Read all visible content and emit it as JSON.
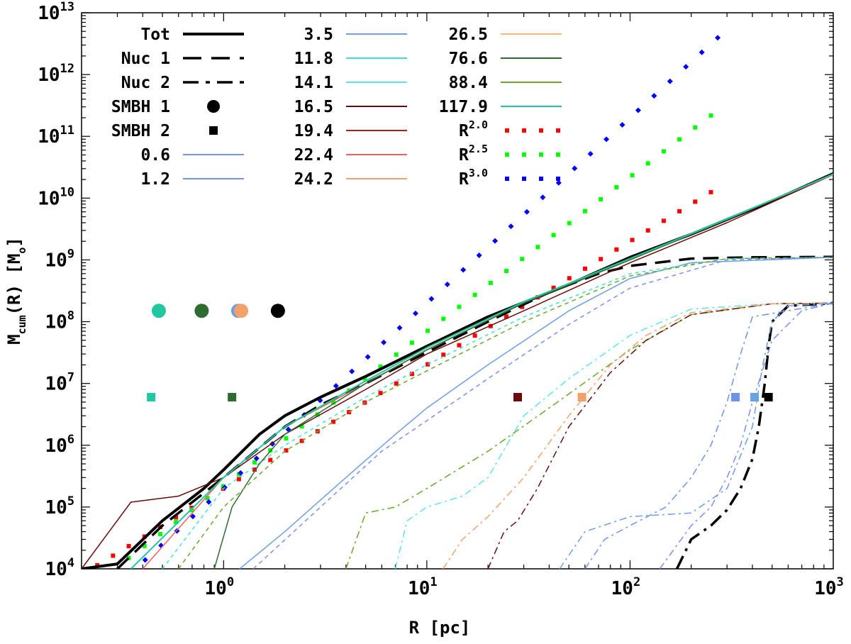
{
  "chart_data": {
    "type": "line",
    "title": "",
    "xlabel": "R [pc]",
    "ylabel": "M_cum(R) [M_o]",
    "ylabel_parts": [
      "M",
      "cum",
      "(R) [M",
      "o",
      "]"
    ],
    "xscale": "log",
    "yscale": "log",
    "xlim": [
      0.2,
      1000
    ],
    "ylim": [
      10000,
      10000000000000
    ],
    "x_ticks": [
      {
        "base": "10",
        "exp": "0",
        "value": 1
      },
      {
        "base": "10",
        "exp": "1",
        "value": 10
      },
      {
        "base": "10",
        "exp": "2",
        "value": 100
      },
      {
        "base": "10",
        "exp": "3",
        "value": 1000
      }
    ],
    "y_ticks": [
      {
        "base": "10",
        "exp": "4",
        "value": 10000.0
      },
      {
        "base": "10",
        "exp": "5",
        "value": 100000.0
      },
      {
        "base": "10",
        "exp": "6",
        "value": 1000000.0
      },
      {
        "base": "10",
        "exp": "7",
        "value": 10000000.0
      },
      {
        "base": "10",
        "exp": "8",
        "value": 100000000.0
      },
      {
        "base": "10",
        "exp": "9",
        "value": 1000000000.0
      },
      {
        "base": "10",
        "exp": "10",
        "value": 10000000000.0
      },
      {
        "base": "10",
        "exp": "11",
        "value": 100000000000.0
      },
      {
        "base": "10",
        "exp": "12",
        "value": 1000000000000.0
      },
      {
        "base": "10",
        "exp": "13",
        "value": 10000000000000.0
      }
    ],
    "legend_position": "top-left",
    "legend": [
      {
        "label": "Tot",
        "style": "solid-thick",
        "color": "#000000"
      },
      {
        "label": "Nuc  1",
        "style": "dashed-long",
        "color": "#000000"
      },
      {
        "label": "Nuc  2",
        "style": "dashdot",
        "color": "#000000"
      },
      {
        "label": "SMBH 1",
        "style": "circle",
        "color": "#000000"
      },
      {
        "label": "SMBH 2",
        "style": "square",
        "color": "#000000"
      },
      {
        "label": "0.6",
        "style": "solid",
        "color": "#7b8ff0"
      },
      {
        "label": "1.2",
        "style": "solid",
        "color": "#6f93e8"
      },
      {
        "label": "3.5",
        "style": "solid",
        "color": "#6d9fe3"
      },
      {
        "label": "11.8",
        "style": "solid",
        "color": "#40e0d0"
      },
      {
        "label": "14.1",
        "style": "solid",
        "color": "#5ce6e6"
      },
      {
        "label": "16.5",
        "style": "solid",
        "color": "#6b0a0a"
      },
      {
        "label": "19.4",
        "style": "solid",
        "color": "#b01c1c"
      },
      {
        "label": "22.4",
        "style": "solid",
        "color": "#f06060"
      },
      {
        "label": "24.2",
        "style": "solid",
        "color": "#f4a06a"
      },
      {
        "label": "26.5",
        "style": "solid",
        "color": "#f5b87a"
      },
      {
        "label": "76.6",
        "style": "solid",
        "color": "#2e6b30"
      },
      {
        "label": "88.4",
        "style": "solid",
        "color": "#6aa82a"
      },
      {
        "label": "117.9",
        "style": "solid",
        "color": "#20c8a0"
      },
      {
        "label": "R",
        "sup": "2.0",
        "style": "dotted",
        "color": "#ff0000"
      },
      {
        "label": "R",
        "sup": "2.5",
        "style": "dotted",
        "color": "#00ff00"
      },
      {
        "label": "R",
        "sup": "3.0",
        "style": "dotted",
        "color": "#0000ff"
      }
    ],
    "smbh1_markers": [
      {
        "x": 0.48,
        "y": 150000000.0,
        "color": "#20c8a0"
      },
      {
        "x": 0.78,
        "y": 150000000.0,
        "color": "#2e6b30"
      },
      {
        "x": 1.18,
        "y": 150000000.0,
        "color": "#6d9fe3"
      },
      {
        "x": 1.22,
        "y": 150000000.0,
        "color": "#f4a06a"
      },
      {
        "x": 1.85,
        "y": 150000000.0,
        "color": "#000000"
      }
    ],
    "smbh2_markers": [
      {
        "x": 0.44,
        "y": 6000000.0,
        "color": "#20c8a0"
      },
      {
        "x": 1.1,
        "y": 6000000.0,
        "color": "#2e6b30"
      },
      {
        "x": 28,
        "y": 6000000.0,
        "color": "#6b0a0a"
      },
      {
        "x": 58,
        "y": 6000000.0,
        "color": "#f4a06a"
      },
      {
        "x": 330,
        "y": 6000000.0,
        "color": "#6f93e8"
      },
      {
        "x": 410,
        "y": 6000000.0,
        "color": "#6d9fe3"
      },
      {
        "x": 480,
        "y": 6000000.0,
        "color": "#000000"
      }
    ],
    "powerlaws": [
      {
        "name": "R^2.0",
        "color": "#ff0000",
        "slope": 2.0,
        "norm": 200000.0,
        "xmax": 250
      },
      {
        "name": "R^2.5",
        "color": "#00ff00",
        "slope": 2.5,
        "norm": 220000.0,
        "xmax": 250
      },
      {
        "name": "R^3.0",
        "color": "#0000ff",
        "slope": 3.0,
        "norm": 200000.0,
        "xmax": 270
      }
    ],
    "series": [
      {
        "name": "Tot",
        "color": "#000000",
        "width": 4,
        "dash": "",
        "x": [
          0.2,
          0.3,
          0.5,
          0.8,
          1.0,
          1.5,
          2,
          3,
          5,
          10,
          20,
          50,
          100,
          200,
          500,
          1000
        ],
        "y": [
          10000.0,
          12000.0,
          60000.0,
          200000.0,
          400000.0,
          1500000.0,
          3000000.0,
          6000000.0,
          13000000.0,
          40000000.0,
          120000000.0,
          400000000.0,
          1100000000.0,
          2600000000.0,
          9000000000.0,
          25000000000.0
        ]
      },
      {
        "name": "Nuc 1",
        "color": "#000000",
        "width": 3.5,
        "dash": "22,12",
        "x": [
          0.3,
          0.5,
          1,
          2,
          3,
          5,
          10,
          20,
          40,
          70,
          100,
          200,
          400,
          1000
        ],
        "y": [
          10000.0,
          50000.0,
          300000.0,
          2000000.0,
          4500000.0,
          10000000.0,
          32000000.0,
          100000000.0,
          300000000.0,
          600000000.0,
          800000000.0,
          1050000000.0,
          1100000000.0,
          1120000000.0
        ]
      },
      {
        "name": "Nuc 2",
        "color": "#000000",
        "width": 3.5,
        "dash": "20,8,4,8",
        "x": [
          170,
          200,
          250,
          300,
          350,
          400,
          430,
          460,
          480,
          500,
          600,
          1000
        ],
        "y": [
          10000.0,
          30000.0,
          50000.0,
          90000.0,
          200000.0,
          600000.0,
          2000000.0,
          10000000.0,
          40000000.0,
          100000000.0,
          180000000.0,
          200000000.0
        ]
      },
      {
        "name": "3.5",
        "color": "#6d9fe3",
        "width": 1.5,
        "dash": "",
        "x": [
          1.2,
          2,
          4,
          7,
          10,
          20,
          50,
          100,
          200,
          1000
        ],
        "y": [
          10000.0,
          40000.0,
          300000.0,
          1500000.0,
          4000000.0,
          20000000.0,
          150000000.0,
          500000000.0,
          900000000.0,
          1100000000.0
        ]
      },
      {
        "name": "11.8",
        "color": "#40e0d0",
        "width": 1.5,
        "dash": "5,5",
        "x": [
          0.5,
          1,
          2,
          5,
          10,
          30,
          100,
          300,
          1000
        ],
        "y": [
          10000.0,
          200000.0,
          1000000.0,
          6000000.0,
          20000000.0,
          120000000.0,
          600000000.0,
          1050000000.0,
          1100000000.0
        ]
      },
      {
        "name": "16.5",
        "color": "#6b0a0a",
        "width": 1.5,
        "dash": "",
        "x": [
          0.2,
          0.35,
          0.6,
          1,
          2,
          5,
          10,
          30,
          100,
          300,
          1000
        ],
        "y": [
          10000.0,
          120000.0,
          150000.0,
          300000.0,
          1500000.0,
          8000000.0,
          30000000.0,
          150000000.0,
          900000000.0,
          4000000000.0,
          24000000000.0
        ]
      },
      {
        "name": "22.4",
        "color": "#f06060",
        "width": 1.5,
        "dash": "",
        "x": [
          0.4,
          1,
          2,
          5,
          10,
          30,
          100,
          300,
          1000
        ],
        "y": [
          10000.0,
          300000.0,
          2000000.0,
          10000000.0,
          35000000.0,
          200000000.0,
          1000000000.0,
          4500000000.0,
          24000000000.0
        ]
      },
      {
        "name": "76.6",
        "color": "#2e6b30",
        "width": 1.5,
        "dash": "",
        "x": [
          0.9,
          1.1,
          1.5,
          2,
          5,
          10,
          30,
          100,
          300,
          1000
        ],
        "y": [
          10000.0,
          100000.0,
          500000.0,
          1500000.0,
          10000000.0,
          35000000.0,
          200000000.0,
          1000000000.0,
          4500000000.0,
          24500000000.0
        ]
      },
      {
        "name": "117.9",
        "color": "#20c8a0",
        "width": 2,
        "dash": "",
        "x": [
          0.35,
          1,
          2,
          5,
          10,
          30,
          100,
          300,
          1000
        ],
        "y": [
          10000.0,
          300000.0,
          2000000.0,
          11000000.0,
          38000000.0,
          210000000.0,
          1050000000.0,
          4600000000.0,
          24500000000.0
        ]
      },
      {
        "name": "88.4 nuc1",
        "color": "#6aa82a",
        "width": 1.5,
        "dash": "6,5",
        "x": [
          0.6,
          1,
          2,
          5,
          10,
          30,
          100,
          300,
          1000
        ],
        "y": [
          10000.0,
          100000.0,
          800000.0,
          5000000.0,
          16000000.0,
          100000000.0,
          550000000.0,
          1050000000.0,
          1100000000.0
        ]
      },
      {
        "name": "0.6 nuc1",
        "color": "#7b8ff0",
        "width": 1.5,
        "dash": "6,5",
        "x": [
          1.4,
          3,
          6,
          10,
          20,
          50,
          100,
          300,
          1000
        ],
        "y": [
          10000.0,
          100000.0,
          800000.0,
          2500000.0,
          12000000.0,
          90000000.0,
          350000000.0,
          1000000000.0,
          1100000000.0
        ]
      },
      {
        "name": "14.1 nuc2",
        "color": "#5ce6e6",
        "width": 1.5,
        "dash": "10,5,3,5",
        "x": [
          7,
          8,
          10,
          15,
          20,
          30,
          50,
          100,
          200,
          500,
          1000
        ],
        "y": [
          10000.0,
          60000.0,
          100000.0,
          150000.0,
          300000.0,
          3000000.0,
          12000000.0,
          60000000.0,
          160000000.0,
          195000000.0,
          200000000.0
        ]
      },
      {
        "name": "88.4 nuc2",
        "color": "#6aa82a",
        "width": 1.5,
        "dash": "10,5,3,5",
        "x": [
          4,
          5,
          7,
          10,
          20,
          40,
          70,
          100,
          200,
          500,
          1000
        ],
        "y": [
          10000.0,
          80000.0,
          100000.0,
          200000.0,
          800000.0,
          4000000.0,
          15000000.0,
          35000000.0,
          130000000.0,
          195000000.0,
          200000000.0
        ]
      },
      {
        "name": "16.5 nuc2",
        "color": "#6b0a0a",
        "width": 1.5,
        "dash": "10,5,3,5",
        "x": [
          20,
          24,
          28,
          35,
          50,
          80,
          120,
          200,
          500,
          1000
        ],
        "y": [
          10000.0,
          40000.0,
          60000.0,
          200000.0,
          2000000.0,
          15000000.0,
          50000000.0,
          130000000.0,
          195000000.0,
          200000000.0
        ]
      },
      {
        "name": "24.2 nuc2",
        "color": "#f4a06a",
        "width": 1.5,
        "dash": "10,5,3,5",
        "x": [
          12,
          15,
          20,
          30,
          50,
          80,
          120,
          200,
          500,
          1000
        ],
        "y": [
          10000.0,
          30000.0,
          70000.0,
          300000.0,
          3000000.0,
          20000000.0,
          60000000.0,
          140000000.0,
          195000000.0,
          200000000.0
        ]
      },
      {
        "name": "1.2 nuc2",
        "color": "#6f93e8",
        "width": 1.5,
        "dash": "10,5,3,5",
        "x": [
          60,
          75,
          100,
          150,
          200,
          250,
          300,
          350,
          400,
          1000
        ],
        "y": [
          10000.0,
          30000.0,
          50000.0,
          100000.0,
          300000.0,
          1000000.0,
          5000000.0,
          30000000.0,
          120000000.0,
          200000000.0
        ]
      },
      {
        "name": "3.5 nuc2",
        "color": "#6d9fe3",
        "width": 1.5,
        "dash": "10,5,3,5",
        "x": [
          45,
          60,
          100,
          200,
          300,
          400,
          450,
          500,
          600,
          1000
        ],
        "y": [
          10000.0,
          40000.0,
          70000.0,
          80000.0,
          200000.0,
          2000000.0,
          20000000.0,
          100000000.0,
          180000000.0,
          200000000.0
        ]
      },
      {
        "name": "0.6 nuc2",
        "color": "#7b8ff0",
        "width": 1.5,
        "dash": "10,5,3,5",
        "x": [
          140,
          200,
          250,
          300,
          350,
          400,
          500,
          700,
          1000
        ],
        "y": [
          10000.0,
          50000.0,
          100000.0,
          300000.0,
          1000000.0,
          5000000.0,
          50000000.0,
          150000000.0,
          200000000.0
        ]
      }
    ]
  }
}
